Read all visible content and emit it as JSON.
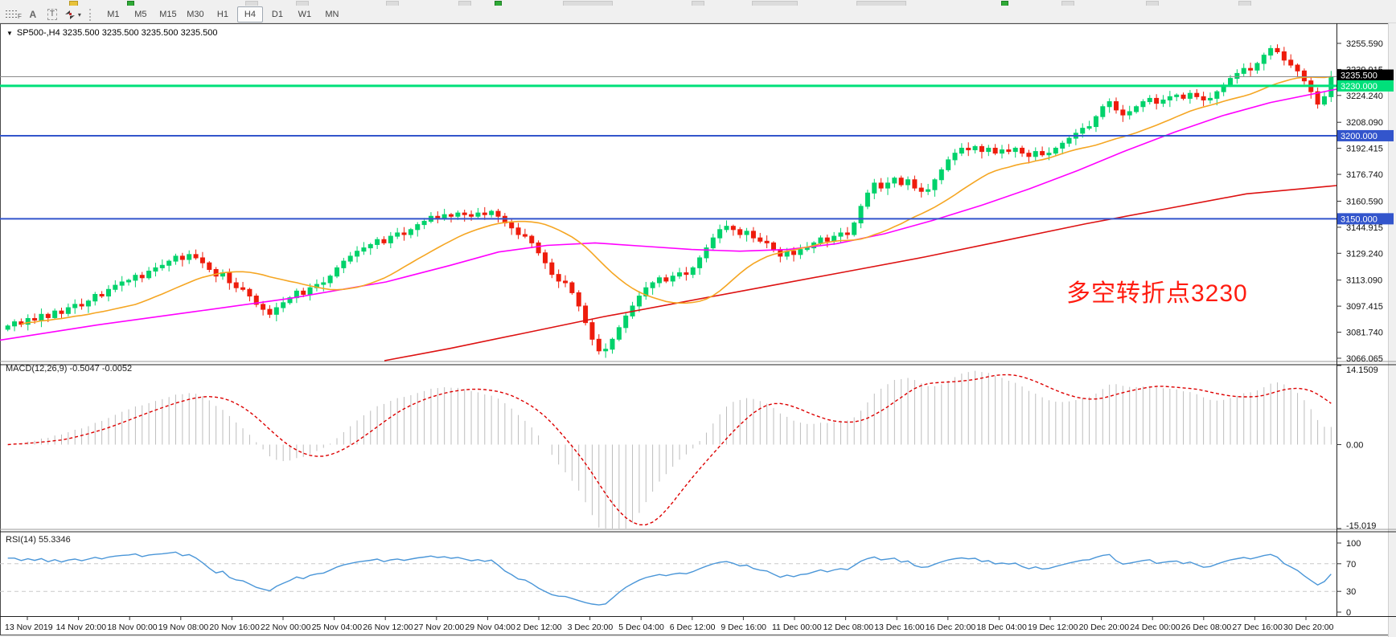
{
  "toolbar": {
    "tools": [
      {
        "name": "fibonacci",
        "label": "F"
      },
      {
        "name": "text-label",
        "label": "A"
      },
      {
        "name": "text",
        "label": "T"
      },
      {
        "name": "arrows",
        "label": ""
      }
    ],
    "timeframes": [
      "M1",
      "M5",
      "M15",
      "M30",
      "H1",
      "H4",
      "D1",
      "W1",
      "MN"
    ],
    "active_timeframe": "H4"
  },
  "chart": {
    "title": "SP500-,H4  3235.500 3235.500 3235.500 3235.500",
    "macd_label": "MACD(12,26,9) -0.5047 -0.0052",
    "rsi_label": "RSI(14) 55.3346",
    "annotation": {
      "text": "多空转折点3230",
      "color": "#ff1c10"
    }
  },
  "chart_data": {
    "type": "candlestick",
    "symbol": "SP500-",
    "timeframe": "H4",
    "x_labels": [
      "13 Nov 2019",
      "14 Nov 20:00",
      "18 Nov 00:00",
      "19 Nov 08:00",
      "20 Nov 16:00",
      "22 Nov 00:00",
      "25 Nov 04:00",
      "26 Nov 12:00",
      "27 Nov 20:00",
      "29 Nov 04:00",
      "2 Dec 12:00",
      "3 Dec 20:00",
      "5 Dec 04:00",
      "6 Dec 12:00",
      "9 Dec 16:00",
      "11 Dec 00:00",
      "12 Dec 08:00",
      "13 Dec 16:00",
      "16 Dec 20:00",
      "18 Dec 04:00",
      "19 Dec 12:00",
      "20 Dec 20:00",
      "24 Dec 00:00",
      "26 Dec 08:00",
      "27 Dec 16:00",
      "30 Dec 20:00"
    ],
    "price_pane": {
      "ylim": [
        3064.6,
        3266.7
      ],
      "yticks": [
        "3255.590",
        "3239.915",
        "3224.240",
        "3208.090",
        "3192.415",
        "3176.740",
        "3160.590",
        "3144.915",
        "3129.240",
        "3113.090",
        "3097.415",
        "3081.740",
        "3066.065"
      ],
      "current_price": 3235.5,
      "current_price_label": "3235.500",
      "current_line_color": "#8a8a8a",
      "hlines": [
        {
          "price": 3230.0,
          "label": "3230.000",
          "color": "#00e07a",
          "width": 3
        },
        {
          "price": 3200.0,
          "label": "3200.000",
          "color": "#3355cc",
          "width": 2
        },
        {
          "price": 3150.0,
          "label": "3150.000",
          "color": "#3355cc",
          "width": 2
        }
      ],
      "up_color": "#00d26b",
      "down_color": "#ee1c0c",
      "first_open": 3083.5,
      "closes": [
        3085.5,
        3088,
        3086.5,
        3090,
        3089,
        3092.5,
        3090.5,
        3094.5,
        3093,
        3096.5,
        3098.5,
        3097.5,
        3100.5,
        3104.5,
        3103.5,
        3107.5,
        3110,
        3112,
        3113,
        3116,
        3114.5,
        3118.5,
        3120.5,
        3122,
        3124.5,
        3127.5,
        3125.5,
        3128.5,
        3126.5,
        3123.5,
        3119.5,
        3115.5,
        3117.5,
        3111.5,
        3108.5,
        3107.5,
        3103.5,
        3098.5,
        3095.5,
        3092.5,
        3096.5,
        3099.5,
        3102.5,
        3106.5,
        3104.5,
        3108.5,
        3110.5,
        3111.5,
        3115.5,
        3120.5,
        3124.5,
        3127.5,
        3130.5,
        3132.5,
        3134.5,
        3137.5,
        3135.5,
        3139.5,
        3141.5,
        3140.5,
        3143.5,
        3146.5,
        3148.5,
        3151.5,
        3150.5,
        3152.5,
        3151.5,
        3153.5,
        3152.5,
        3151.5,
        3153.5,
        3152.5,
        3154.5,
        3151.5,
        3147.5,
        3144.5,
        3140.5,
        3139.5,
        3135.5,
        3129.5,
        3123.5,
        3116.5,
        3112.5,
        3111.5,
        3105.5,
        3097.5,
        3087.5,
        3077.5,
        3070.5,
        3071.5,
        3077.5,
        3084.5,
        3091.5,
        3097.5,
        3103.5,
        3108.5,
        3111.5,
        3114.5,
        3112.5,
        3115.5,
        3117.5,
        3116.5,
        3120.5,
        3126.5,
        3132.5,
        3138.5,
        3143.5,
        3145.5,
        3143.5,
        3140.5,
        3142.5,
        3138.5,
        3136.5,
        3135.5,
        3131.5,
        3127.5,
        3130.5,
        3128.5,
        3131.5,
        3132.5,
        3135.5,
        3138.5,
        3136.5,
        3139.5,
        3141.5,
        3140.5,
        3147.5,
        3157.5,
        3165.5,
        3171.5,
        3168.5,
        3171.5,
        3174.5,
        3170.5,
        3173.5,
        3168.5,
        3166.5,
        3167.5,
        3173.5,
        3179.5,
        3185.5,
        3189.5,
        3192.5,
        3191.5,
        3193.5,
        3190.5,
        3192.5,
        3189.5,
        3191.5,
        3190.5,
        3192.5,
        3189.5,
        3187.5,
        3190.5,
        3188.5,
        3189.5,
        3192.5,
        3195.5,
        3198.5,
        3201.5,
        3204.5,
        3205.5,
        3211.5,
        3217.5,
        3220.5,
        3215.5,
        3212.5,
        3214.5,
        3217.5,
        3220.5,
        3222.5,
        3219.5,
        3221.5,
        3223.5,
        3224.5,
        3222.5,
        3225.5,
        3223.5,
        3221.5,
        3222.5,
        3226.5,
        3230.5,
        3234.5,
        3237.5,
        3240.5,
        3239.5,
        3243.5,
        3248.5,
        3252.5,
        3250.5,
        3245.5,
        3242.5,
        3239,
        3233,
        3226.5,
        3219,
        3223.5,
        3235.5
      ],
      "ma_fast": {
        "period": 20,
        "color": "#f5a623"
      },
      "ma_mid_color": "#ff00ff",
      "ma_mid_points": [
        [
          0,
          3077
        ],
        [
          120,
          3086
        ],
        [
          240,
          3094
        ],
        [
          360,
          3102
        ],
        [
          480,
          3112
        ],
        [
          560,
          3122
        ],
        [
          620,
          3130
        ],
        [
          680,
          3134
        ],
        [
          740,
          3135.5
        ],
        [
          800,
          3133.5
        ],
        [
          860,
          3131.5
        ],
        [
          920,
          3130.5
        ],
        [
          980,
          3131.5
        ],
        [
          1040,
          3135
        ],
        [
          1100,
          3141
        ],
        [
          1160,
          3149
        ],
        [
          1220,
          3158
        ],
        [
          1280,
          3168
        ],
        [
          1340,
          3179
        ],
        [
          1400,
          3191
        ],
        [
          1460,
          3202
        ],
        [
          1520,
          3212
        ],
        [
          1580,
          3220
        ],
        [
          1662,
          3228
        ]
      ],
      "ma_slow_color": "#dd1111",
      "ma_slow_points": [
        [
          478,
          3064.6
        ],
        [
          560,
          3072
        ],
        [
          650,
          3081
        ],
        [
          750,
          3091
        ],
        [
          850,
          3100
        ],
        [
          950,
          3109
        ],
        [
          1050,
          3118
        ],
        [
          1150,
          3127
        ],
        [
          1250,
          3137
        ],
        [
          1350,
          3147
        ],
        [
          1450,
          3156
        ],
        [
          1550,
          3165
        ],
        [
          1662,
          3170
        ]
      ]
    },
    "macd_pane": {
      "params": [
        12,
        26,
        9
      ],
      "values": [
        -0.5047,
        -0.0052
      ],
      "ylim": [
        -15.019,
        14.1509
      ],
      "yticks": [
        "14.1509",
        "0.00",
        "-15.019"
      ],
      "hist_color": "#bdbdbd",
      "signal_color": "#dd0000"
    },
    "rsi_pane": {
      "period": 14,
      "value": 55.3346,
      "ylim": [
        0,
        100
      ],
      "yticks": [
        "100",
        "70",
        "30",
        "0"
      ],
      "levels": [
        70,
        30
      ],
      "line_color": "#4a96d8",
      "level_color": "#c9c9c9"
    }
  }
}
